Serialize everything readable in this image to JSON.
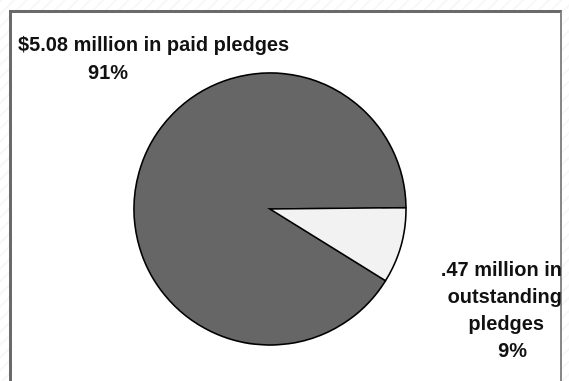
{
  "chart_data": {
    "type": "pie",
    "slices": [
      {
        "label_line1": "$5.08 million in paid pledges",
        "label_pct": "91%",
        "value": 5.08,
        "percent": 91,
        "color": "#666666"
      },
      {
        "label_lines": [
          ".47 million in",
          "outstanding",
          "pledges"
        ],
        "label_pct": "9%",
        "value": 0.47,
        "percent": 9,
        "color": "#f2f2f2"
      }
    ]
  }
}
